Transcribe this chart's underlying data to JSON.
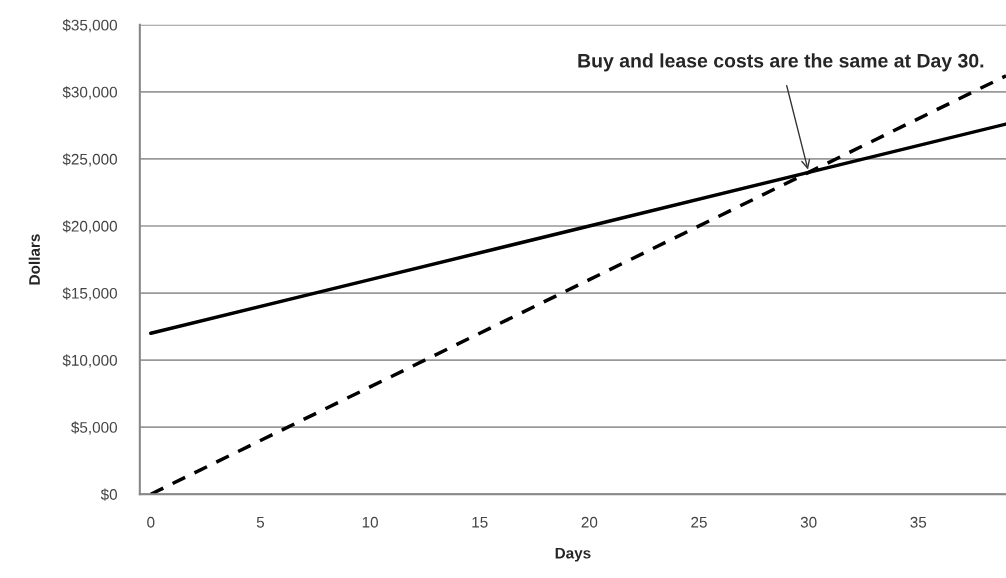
{
  "chart_data": {
    "type": "line",
    "xlabel": "Days",
    "ylabel": "Dollars",
    "x": [
      0,
      10,
      20,
      30,
      39
    ],
    "series": [
      {
        "color": "#000000",
        "line_style": "solid",
        "values": [
          12000,
          16000,
          20000,
          24000,
          27600
        ]
      },
      {
        "color": "#000000",
        "line_style": "dashed",
        "values": [
          0,
          8000,
          16000,
          24000,
          31200
        ]
      }
    ],
    "xlim": [
      -0.5,
      39
    ],
    "xticks": [
      0,
      5,
      10,
      15,
      20,
      25,
      30,
      35
    ],
    "ylim": [
      0,
      35000
    ],
    "yticks": [
      {
        "value": 0,
        "label": "$0"
      },
      {
        "value": 5000,
        "label": "$5,000"
      },
      {
        "value": 10000,
        "label": "$10,000"
      },
      {
        "value": 15000,
        "label": "$15,000"
      },
      {
        "value": 20000,
        "label": "$20,000"
      },
      {
        "value": 25000,
        "label": "$25,000"
      },
      {
        "value": 30000,
        "label": "$30,000"
      },
      {
        "value": 35000,
        "label": "$35,000"
      }
    ],
    "grid": "y",
    "marker": "none",
    "annotations": [
      {
        "text": "Buy and lease costs are the same at Day 30.",
        "x": 30,
        "y": 24000
      }
    ]
  }
}
